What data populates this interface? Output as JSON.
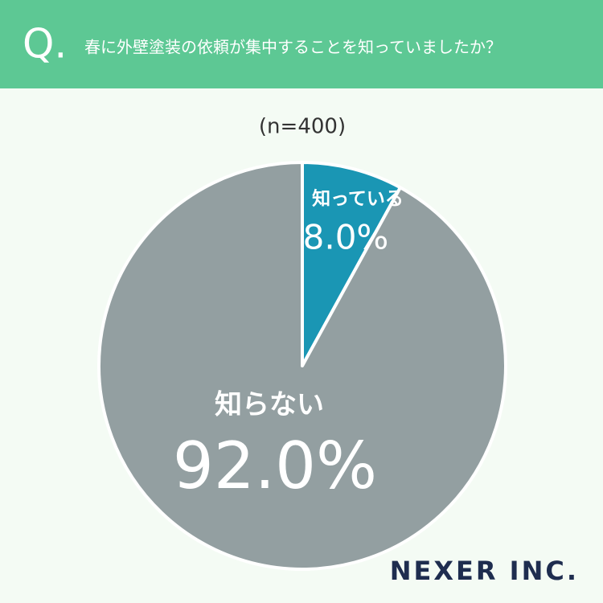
{
  "chart_data": {
    "type": "pie",
    "title": "春に外壁塗装の依頼が集中することを知っていましたか？",
    "question_mark": "Q.",
    "subtitle": "(n=400)",
    "categories": [
      "知っている",
      "知らない"
    ],
    "values": [
      8.0,
      92.0
    ],
    "value_labels": [
      "8.0%",
      "92.0%"
    ],
    "colors": [
      "#1a96b4",
      "#939fa1"
    ],
    "logo": "NEXER INC."
  }
}
